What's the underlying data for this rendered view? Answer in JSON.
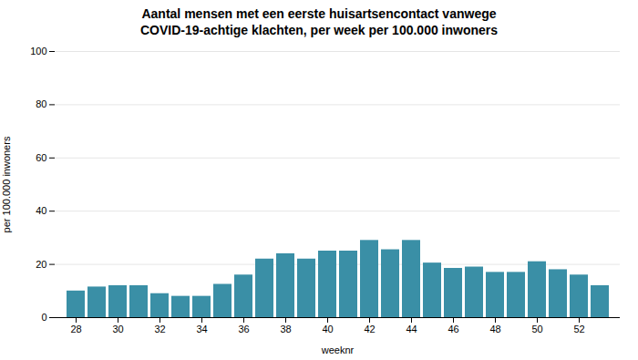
{
  "chart_data": {
    "type": "bar",
    "title": "Aantal mensen met een eerste huisartsencontact vanwege\nCOVID-19-achtige klachten, per week per 100.000 inwoners",
    "x": [
      28,
      29,
      30,
      31,
      32,
      33,
      34,
      35,
      36,
      37,
      38,
      39,
      40,
      41,
      42,
      43,
      44,
      45,
      46,
      47,
      48,
      49,
      50,
      51,
      52,
      53
    ],
    "values": [
      10,
      11.5,
      12,
      12,
      9,
      8,
      8,
      12.5,
      16,
      22,
      24,
      22,
      25,
      25,
      29,
      25.5,
      29,
      20.5,
      18.5,
      19,
      17,
      17,
      21,
      18,
      16,
      12
    ],
    "color": "#3a8fa6",
    "xlabel": "weeknr",
    "ylabel": "per 100.000 inwoners",
    "xticks": [
      28,
      30,
      32,
      34,
      36,
      38,
      40,
      42,
      44,
      46,
      48,
      50,
      52
    ],
    "ylim": [
      0,
      100
    ],
    "yticks": [
      0,
      20,
      40,
      60,
      80,
      100
    ],
    "grid": true
  }
}
